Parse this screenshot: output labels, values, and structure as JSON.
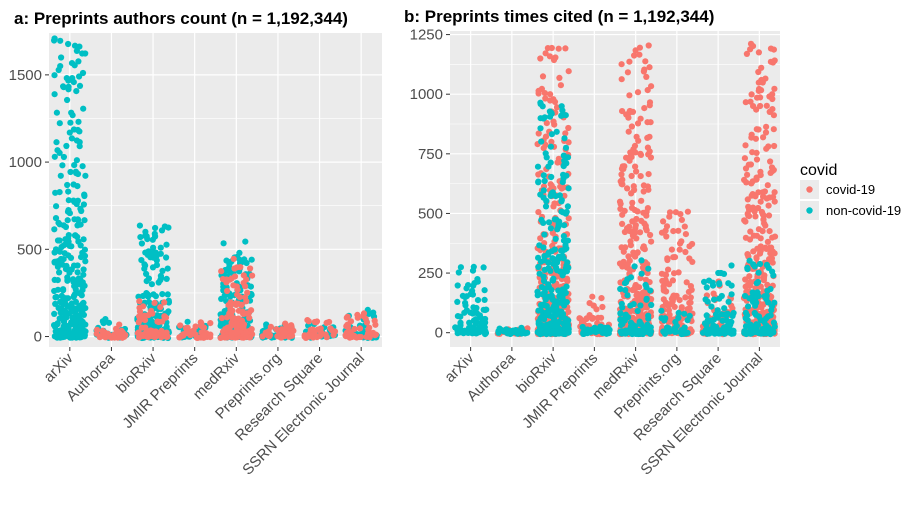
{
  "chart_data": [
    {
      "type": "scatter",
      "title": "a: Preprints authors count (n = 1,192,344)",
      "xlabel": "",
      "ylabel": "",
      "categories": [
        "arXiv",
        "Authorea",
        "bioRxiv",
        "JMIR Preprints",
        "medRxiv",
        "Preprints.org",
        "Research Square",
        "SSRN Electronic Journal"
      ],
      "yticks": [
        0,
        500,
        1000,
        1500
      ],
      "ylim": [
        -60,
        1740
      ],
      "grid": true,
      "series": [
        {
          "name": "non-covid-19",
          "color": "#00BFC4",
          "max": [
            1700,
            95,
            630,
            80,
            540,
            75,
            65,
            150
          ]
        },
        {
          "name": "covid-19",
          "color": "#F8766D",
          "max": [
            0,
            60,
            200,
            75,
            450,
            70,
            100,
            130
          ]
        }
      ]
    },
    {
      "type": "scatter",
      "title": "b: Preprints times cited (n = 1,192,344)",
      "xlabel": "",
      "ylabel": "",
      "categories": [
        "arXiv",
        "Authorea",
        "bioRxiv",
        "JMIR Preprints",
        "medRxiv",
        "Preprints.org",
        "Research Square",
        "SSRN Electronic Journal"
      ],
      "yticks": [
        0,
        250,
        500,
        750,
        1000,
        1250
      ],
      "ylim": [
        -60,
        1265
      ],
      "grid": true,
      "series": [
        {
          "name": "covid-19",
          "color": "#F8766D",
          "max": [
            0,
            15,
            1195,
            150,
            1210,
            505,
            210,
            1215
          ]
        },
        {
          "name": "non-covid-19",
          "color": "#00BFC4",
          "max": [
            280,
            20,
            960,
            30,
            300,
            90,
            280,
            300
          ]
        }
      ]
    }
  ],
  "legend": {
    "title": "covid",
    "placement": "right",
    "items": [
      {
        "label": "covid-19",
        "color": "#F8766D"
      },
      {
        "label": "non-covid-19",
        "color": "#00BFC4"
      }
    ]
  },
  "colors": {
    "panel_background": "#EBEBEB",
    "grid": "#FFFFFF",
    "covid": "#F8766D",
    "non_covid": "#00BFC4"
  }
}
